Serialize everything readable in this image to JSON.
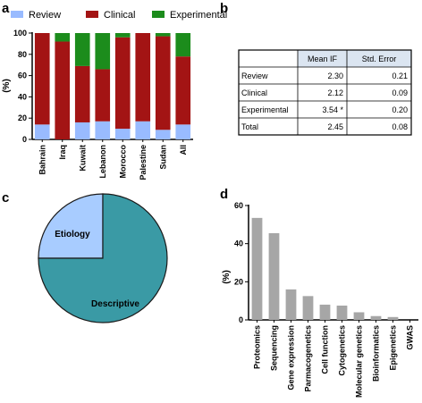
{
  "panels": {
    "a": "a",
    "b": "b",
    "c": "c",
    "d": "d"
  },
  "colors": {
    "review": "#99bbff",
    "clinical": "#a31414",
    "experimental": "#1c8c1c",
    "pie_descriptive": "#3a9aa5",
    "pie_etiology": "#a8ccff",
    "bar_grey": "#a6a6a6"
  },
  "chart_data": [
    {
      "type": "bar",
      "stacked": true,
      "ylabel": "(%)",
      "ylim": [
        0,
        100
      ],
      "yticks": [
        "0",
        "20",
        "40",
        "60",
        "80",
        "100"
      ],
      "categories": [
        "Bahrain",
        "Iraq",
        "Kuwait",
        "Lebanon",
        "Morocco",
        "Palestine",
        "Sudan",
        "All"
      ],
      "legend_position": "top",
      "series": [
        {
          "name": "Review",
          "values": [
            14,
            0,
            16,
            17,
            10,
            17,
            9,
            14
          ]
        },
        {
          "name": "Clinical",
          "values": [
            86,
            92,
            53,
            49,
            86,
            83,
            88,
            64
          ]
        },
        {
          "name": "Experimental",
          "values": [
            0,
            8,
            31,
            34,
            4,
            0,
            3,
            22
          ]
        }
      ]
    },
    {
      "type": "table",
      "columns": [
        "",
        "Mean IF",
        "Std. Error"
      ],
      "rows": [
        [
          "Review",
          "2.30",
          "0.21"
        ],
        [
          "Clinical",
          "2.12",
          "0.09"
        ],
        [
          "Experimental",
          "3.54 *",
          "0.20"
        ],
        [
          "Total",
          "2.45",
          "0.08"
        ]
      ]
    },
    {
      "type": "pie",
      "labels": [
        "Etiology",
        "Descriptive"
      ],
      "values": [
        25,
        75
      ]
    },
    {
      "type": "bar",
      "ylabel": "(%)",
      "ylim": [
        0,
        60
      ],
      "yticks": [
        "0",
        "20",
        "40",
        "60"
      ],
      "categories": [
        "Proteomics",
        "Sequencing",
        "Gene expression",
        "Parmacogenetics",
        "Cell function",
        "Cytogenetics",
        "Molecular genetics",
        "Bioinformatics",
        "Epigenetics",
        "GWAS"
      ],
      "values": [
        53.5,
        45.5,
        16,
        12.5,
        8,
        7.5,
        4,
        2,
        1.5,
        0
      ]
    }
  ]
}
